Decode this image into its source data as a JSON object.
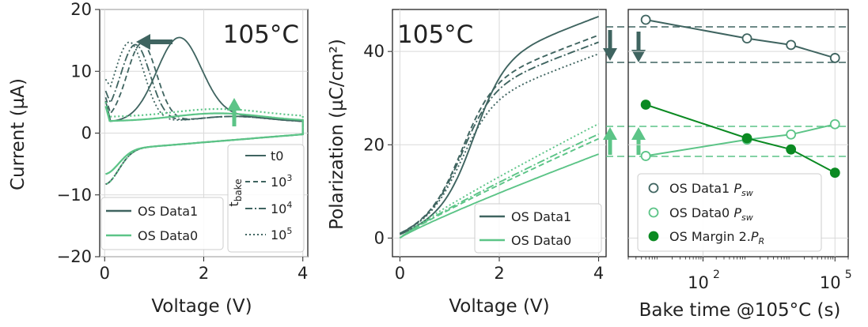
{
  "chart_data": [
    {
      "type": "line",
      "xlabel": "Voltage (V)",
      "ylabel": "Current (µA)",
      "xlim": [
        -0.1,
        4.1
      ],
      "ylim": [
        -20,
        20
      ],
      "xticks": [
        0,
        2,
        4
      ],
      "yticks": [
        20,
        10,
        0,
        -10,
        -20
      ],
      "ytick_labels": [
        "20",
        "10",
        "0",
        "−10",
        "−20"
      ],
      "annotation": "105°C",
      "legend": [
        "OS Data1",
        "OS Data0"
      ],
      "legend_title_sub": "bake",
      "bake_legend": [
        "t0",
        "10"
      ],
      "bake_exponents": [
        "3",
        "4",
        "5"
      ],
      "colors": {
        "data1": "#3f6460",
        "data0": "#5cc487"
      },
      "series": [
        {
          "name": "OS Data1",
          "bake": "t0",
          "peak_x": 1.5,
          "peak_y": 15.2
        },
        {
          "name": "OS Data1",
          "bake": "1e3",
          "peak_x": 0.75,
          "peak_y": 14.5
        },
        {
          "name": "OS Data1",
          "bake": "1e4",
          "peak_x": 0.62,
          "peak_y": 14.3
        },
        {
          "name": "OS Data1",
          "bake": "1e5",
          "peak_x": 0.5,
          "peak_y": 14.7
        },
        {
          "name": "OS Data0",
          "bake": "t0",
          "level": 1.9
        },
        {
          "name": "OS Data0",
          "bake": "1e5",
          "level": 2.6
        }
      ]
    },
    {
      "type": "line",
      "xlabel": "Voltage (V)",
      "ylabel": "Polarization (µC/cm²)",
      "xlim": [
        -0.15,
        4.15
      ],
      "ylim": [
        -4,
        49
      ],
      "xticks": [
        0,
        2,
        4
      ],
      "yticks": [
        0,
        20,
        40
      ],
      "annotation": "105°C",
      "legend": [
        "OS Data1",
        "OS Data0"
      ],
      "series": [
        {
          "name": "OS Data1",
          "bake": "t0",
          "start": 37.2,
          "end": 47.0
        },
        {
          "name": "OS Data1",
          "bake": "1e3",
          "start": 31.5,
          "end": 43.0
        },
        {
          "name": "OS Data1",
          "bake": "1e4",
          "start": 30.0,
          "end": 41.5
        },
        {
          "name": "OS Data1",
          "bake": "1e5",
          "start": 28.2,
          "end": 39.0
        },
        {
          "name": "OS Data0",
          "bake": "t0",
          "start": 8.2,
          "end": 18.0
        },
        {
          "name": "OS Data0",
          "bake": "1e3",
          "start": 10.2,
          "end": 21.3
        },
        {
          "name": "OS Data0",
          "bake": "1e4",
          "start": 10.9,
          "end": 22.3
        },
        {
          "name": "OS Data0",
          "bake": "1e5",
          "start": 11.7,
          "end": 24.5
        }
      ]
    },
    {
      "type": "scatter",
      "xlabel": "Bake time @105°C (s)",
      "xscale": "log",
      "xlim": [
        2,
        200000
      ],
      "ylim": [
        -4,
        49
      ],
      "xtick_exponents": [
        2,
        5
      ],
      "xtick_base": "10",
      "xtick_labels": [
        "2",
        "5"
      ],
      "x": [
        5,
        1000,
        10000,
        100000
      ],
      "series": [
        {
          "name_main": "OS Data1 ",
          "name_sym": "P",
          "name_sub": "sw",
          "marker": "open",
          "color": "#3f6460",
          "values": [
            46.8,
            42.8,
            41.4,
            38.6
          ]
        },
        {
          "name_main": "OS Data0 ",
          "name_sym": "P",
          "name_sub": "sw",
          "marker": "open",
          "color": "#5cc487",
          "values": [
            17.6,
            21.1,
            22.2,
            24.4
          ]
        },
        {
          "name_main": "OS Margin 2.",
          "name_sym": "P",
          "name_sub": "R",
          "marker": "filled",
          "color": "#0b8a22",
          "values": [
            28.6,
            21.4,
            19.0,
            14.0
          ]
        }
      ]
    }
  ]
}
